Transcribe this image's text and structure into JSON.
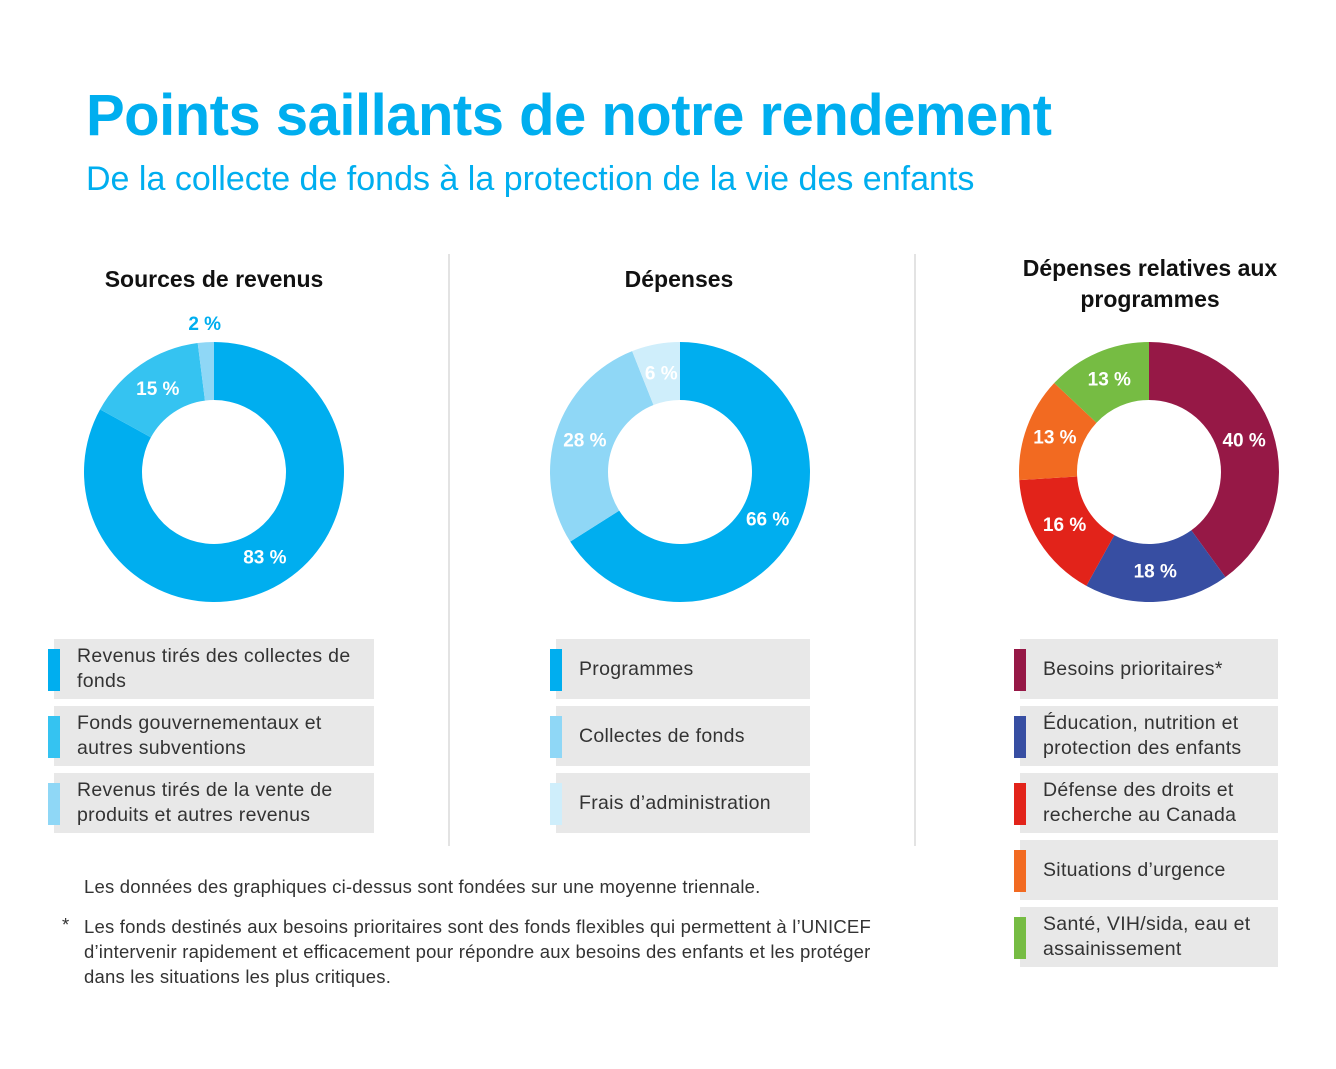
{
  "header": {
    "title": "Points saillants de notre rendement",
    "subtitle": "De la collecte de fonds à la protection de la vie des enfants"
  },
  "chart_data": [
    {
      "type": "pie",
      "title": "Sources de revenus",
      "categories": [
        "Revenus tirés des collectes de fonds",
        "Fonds gouvernementaux et autres subventions",
        "Revenus tirés de la vente de produits et autres revenus"
      ],
      "values": [
        83,
        15,
        2
      ],
      "labels": [
        "83 %",
        "15 %",
        "2 %"
      ],
      "colors": [
        "#00aeef",
        "#35c3f1",
        "#8fd7f6"
      ],
      "legend": "bottom"
    },
    {
      "type": "pie",
      "title": "Dépenses",
      "categories": [
        "Programmes",
        "Collectes de fonds",
        "Frais d’administration"
      ],
      "values": [
        66,
        28,
        6
      ],
      "labels": [
        "66 %",
        "28 %",
        "6 %"
      ],
      "colors": [
        "#00aeef",
        "#8fd7f6",
        "#cfeefb"
      ],
      "legend": "bottom"
    },
    {
      "type": "pie",
      "title": "Dépenses relatives aux programmes",
      "categories": [
        "Besoins prioritaires*",
        "Éducation, nutrition et protection des enfants",
        "Défense des droits et recherche au Canada",
        "Situations d’urgence",
        "Santé, VIH/sida, eau et assainissement"
      ],
      "values": [
        40,
        18,
        16,
        13,
        13
      ],
      "labels": [
        "40 %",
        "18 %",
        "16 %",
        "13 %",
        "13 %"
      ],
      "colors": [
        "#961846",
        "#374ea2",
        "#e2231a",
        "#f26a21",
        "#76bc43"
      ],
      "legend": "bottom"
    }
  ],
  "notes": {
    "line1": "Les données des graphiques ci-dessus sont fondées sur une moyenne triennale.",
    "star": "*",
    "line2": "Les fonds destinés aux besoins prioritaires sont des fonds flexibles qui permettent à l’UNICEF d’intervenir rapidement et efficacement pour répondre aux besoins des enfants et les protéger dans les situations les plus critiques."
  }
}
